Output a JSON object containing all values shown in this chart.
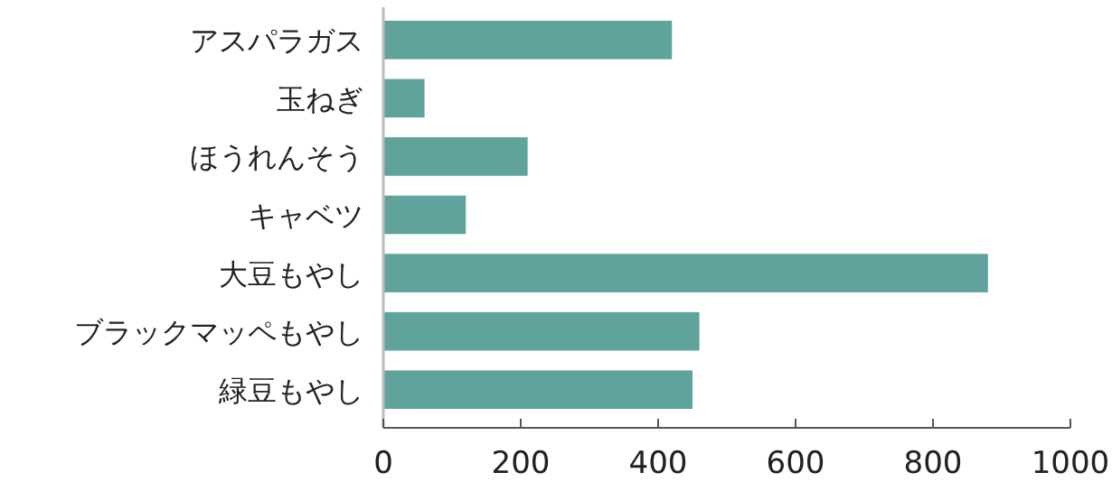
{
  "chart_data": {
    "type": "bar",
    "orientation": "horizontal",
    "categories": [
      "アスパラガス",
      "玉ねぎ",
      "ほうれんそう",
      "キャベツ",
      "大豆もやし",
      "ブラックマッペもやし",
      "緑豆もやし"
    ],
    "values": [
      420,
      60,
      210,
      120,
      880,
      460,
      450
    ],
    "color": "#5fa39c",
    "xlim": [
      0,
      1000
    ],
    "xticks": [
      0,
      200,
      400,
      600,
      800,
      1000
    ]
  }
}
